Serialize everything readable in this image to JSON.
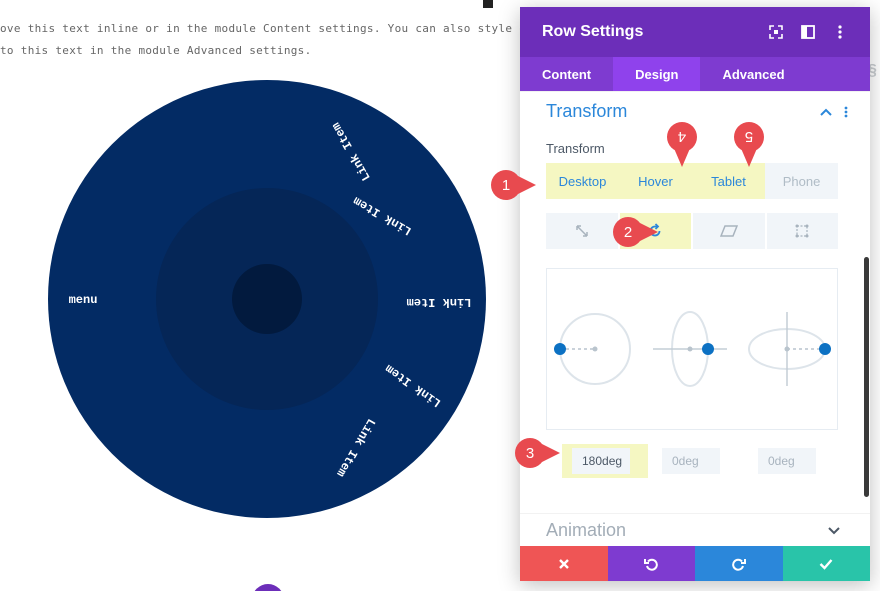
{
  "page": {
    "body_text_line1": "ove this text inline or in the module Content settings. You can also style every aspect of this",
    "body_text_line2": "to this text in the module Advanced settings."
  },
  "circle_menu": {
    "center_label": "menu",
    "items": [
      "Link Item",
      "Link Item",
      "Link Item",
      "Link Item",
      "Link Item"
    ],
    "colors": {
      "outer": "#032b64",
      "middle": "#052657",
      "inner": "#021a3e"
    }
  },
  "panel": {
    "title": "Row Settings",
    "header_icons": [
      "fullscreen-icon",
      "sidebar-layout-icon",
      "more-vertical-icon"
    ],
    "tabs": [
      {
        "label": "Content",
        "active": false
      },
      {
        "label": "Design",
        "active": true
      },
      {
        "label": "Advanced",
        "active": false
      }
    ],
    "section": {
      "title": "Transform",
      "expanded": true
    },
    "field_label": "Transform",
    "device_tabs": [
      "Desktop",
      "Hover",
      "Tablet",
      "Phone"
    ],
    "transform_types": [
      "scale-icon",
      "rotate-icon",
      "skew-icon",
      "origin-icon"
    ],
    "active_type": "rotate-icon",
    "rotate_values": [
      {
        "value": "180deg"
      },
      {
        "placeholder": "0deg"
      },
      {
        "placeholder": "0deg"
      }
    ],
    "next_section": "Animation",
    "footer_buttons": [
      "close-icon",
      "undo-icon",
      "redo-icon",
      "save-check-icon"
    ]
  },
  "callouts": [
    "1",
    "2",
    "3",
    "4",
    "5"
  ],
  "colors": {
    "purple": "#6c2eb9",
    "tab_bar": "#7e3bd0",
    "active_tab": "#8f42ec",
    "accent_blue": "#2b87da",
    "highlight": "#f5f7c2",
    "callout_red": "#e84a4f",
    "btn_red": "#ef5555",
    "btn_purple": "#7e3bd0",
    "btn_blue": "#2b87da",
    "btn_green": "#29c4a9"
  }
}
